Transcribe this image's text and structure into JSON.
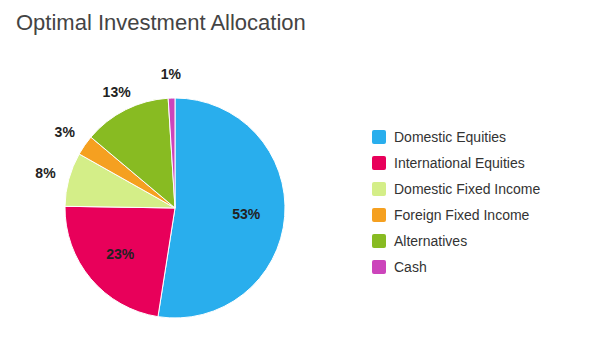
{
  "chart_data": {
    "type": "pie",
    "title": "Optimal Investment Allocation",
    "categories": [
      "Domestic Equities",
      "International Equities",
      "Domestic Fixed Income",
      "Foreign Fixed Income",
      "Alternatives",
      "Cash"
    ],
    "values": [
      53,
      23,
      8,
      3,
      13,
      1
    ],
    "value_labels": [
      "53%",
      "23%",
      "8%",
      "3%",
      "13%",
      "1%"
    ],
    "colors": [
      "#29AEED",
      "#E8005A",
      "#D4EE88",
      "#F5A020",
      "#88BB22",
      "#CC44BB"
    ],
    "data_labels": true,
    "legend": "right"
  }
}
